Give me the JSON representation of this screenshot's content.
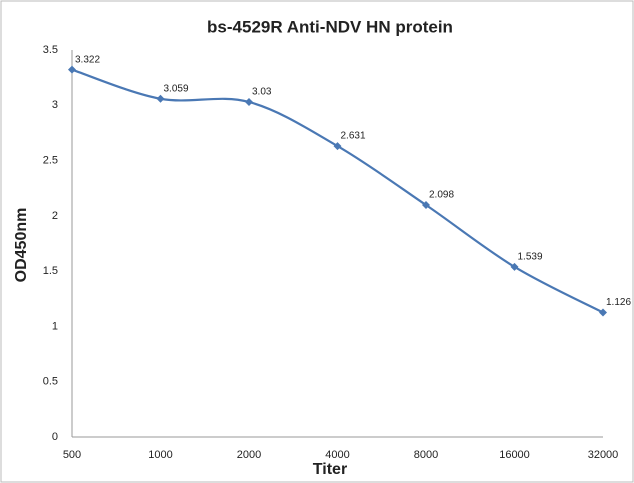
{
  "chart_data": {
    "type": "line",
    "title": "bs-4529R Anti-NDV HN protein",
    "x_label": "Titer",
    "y_label": "OD450nm",
    "categories": [
      "500",
      "1000",
      "2000",
      "4000",
      "8000",
      "16000",
      "32000"
    ],
    "series": [
      {
        "name": "OD450nm",
        "color": "#4a78b4",
        "values": [
          3.322,
          3.059,
          3.03,
          2.631,
          2.098,
          1.539,
          1.126
        ]
      }
    ],
    "ylim": [
      0,
      3.5
    ],
    "yticks": [
      0,
      0.5,
      1,
      1.5,
      2,
      2.5,
      3,
      3.5
    ],
    "grid": false
  }
}
